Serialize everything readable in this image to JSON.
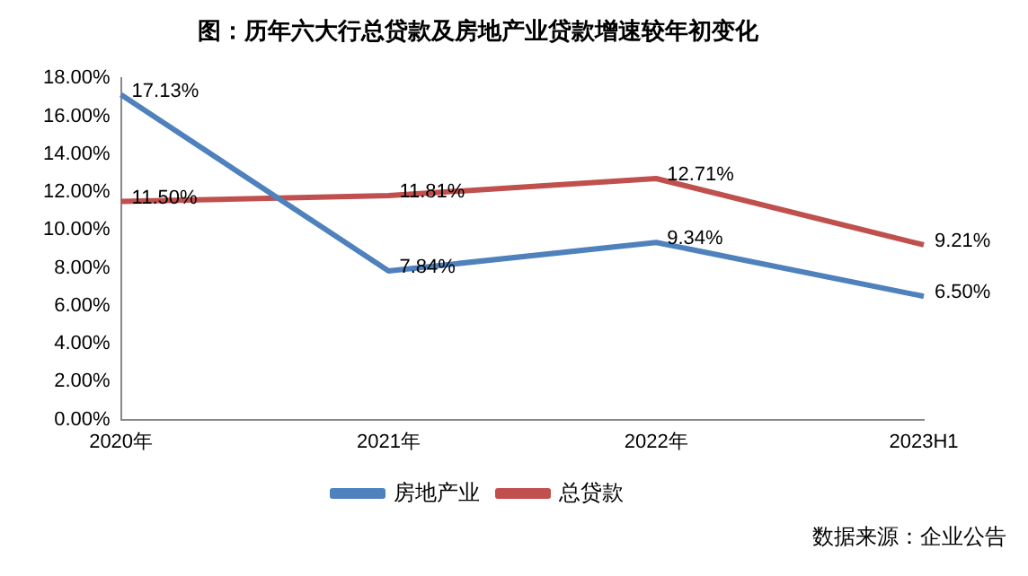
{
  "chart_data": {
    "type": "line",
    "title": "图：历年六大行总贷款及房地产业贷款增速较年初变化",
    "categories": [
      "2020年",
      "2021年",
      "2022年",
      "2023H1"
    ],
    "series": [
      {
        "name": "房地产业",
        "color": "#4f81bd",
        "values": [
          17.13,
          7.84,
          9.34,
          6.5
        ],
        "value_labels": [
          "17.13%",
          "7.84%",
          "9.34%",
          "6.50%"
        ]
      },
      {
        "name": "总贷款",
        "color": "#c0504d",
        "values": [
          11.5,
          11.81,
          12.71,
          9.21
        ],
        "value_labels": [
          "11.50%",
          "11.81%",
          "12.71%",
          "9.21%"
        ]
      }
    ],
    "ylim": [
      0,
      18
    ],
    "yticks": [
      {
        "value": 0,
        "label": "0.00%"
      },
      {
        "value": 2,
        "label": "2.00%"
      },
      {
        "value": 4,
        "label": "4.00%"
      },
      {
        "value": 6,
        "label": "6.00%"
      },
      {
        "value": 8,
        "label": "8.00%"
      },
      {
        "value": 10,
        "label": "10.00%"
      },
      {
        "value": 12,
        "label": "12.00%"
      },
      {
        "value": 14,
        "label": "14.00%"
      },
      {
        "value": 16,
        "label": "16.00%"
      },
      {
        "value": 18,
        "label": "18.00%"
      }
    ],
    "grid": false,
    "legend": "bottom",
    "marker": "none",
    "line_style": "solid",
    "annotations": [
      "数据来源：企业公告"
    ]
  }
}
